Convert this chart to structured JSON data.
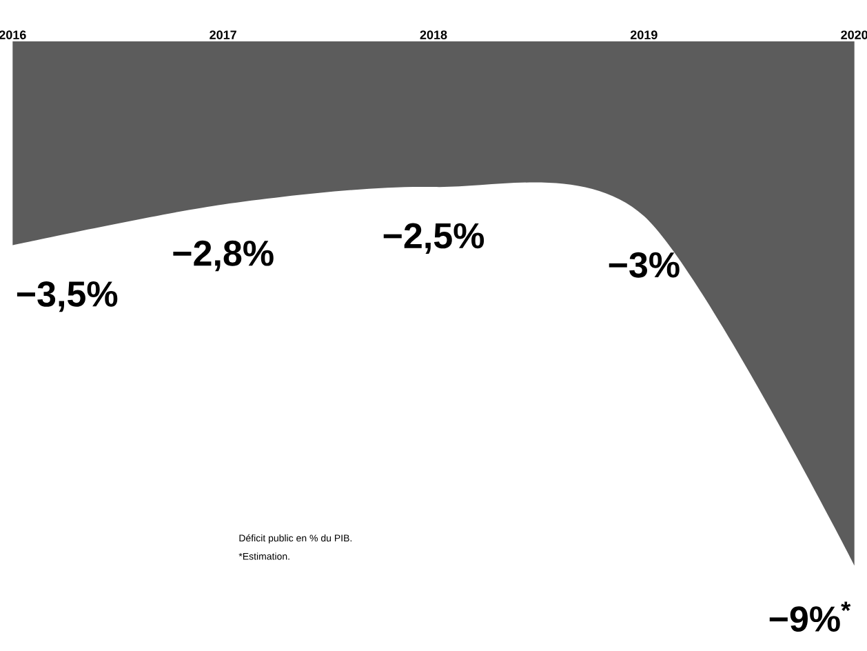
{
  "chart_data": {
    "type": "area",
    "categories": [
      "2016",
      "2017",
      "2018",
      "2019",
      "2020"
    ],
    "series": [
      {
        "color": "#5c5c5c",
        "values": [
          -3.5,
          -2.8,
          -2.5,
          -3,
          -9
        ],
        "value_labels": [
          "−3,5%",
          "−2,8%",
          "−2,5%",
          "−3%",
          "−9%$^{*}$"
        ]
      }
    ],
    "annotations": [
      "Déficit public en % du PIB.",
      "*Estimation."
    ]
  }
}
